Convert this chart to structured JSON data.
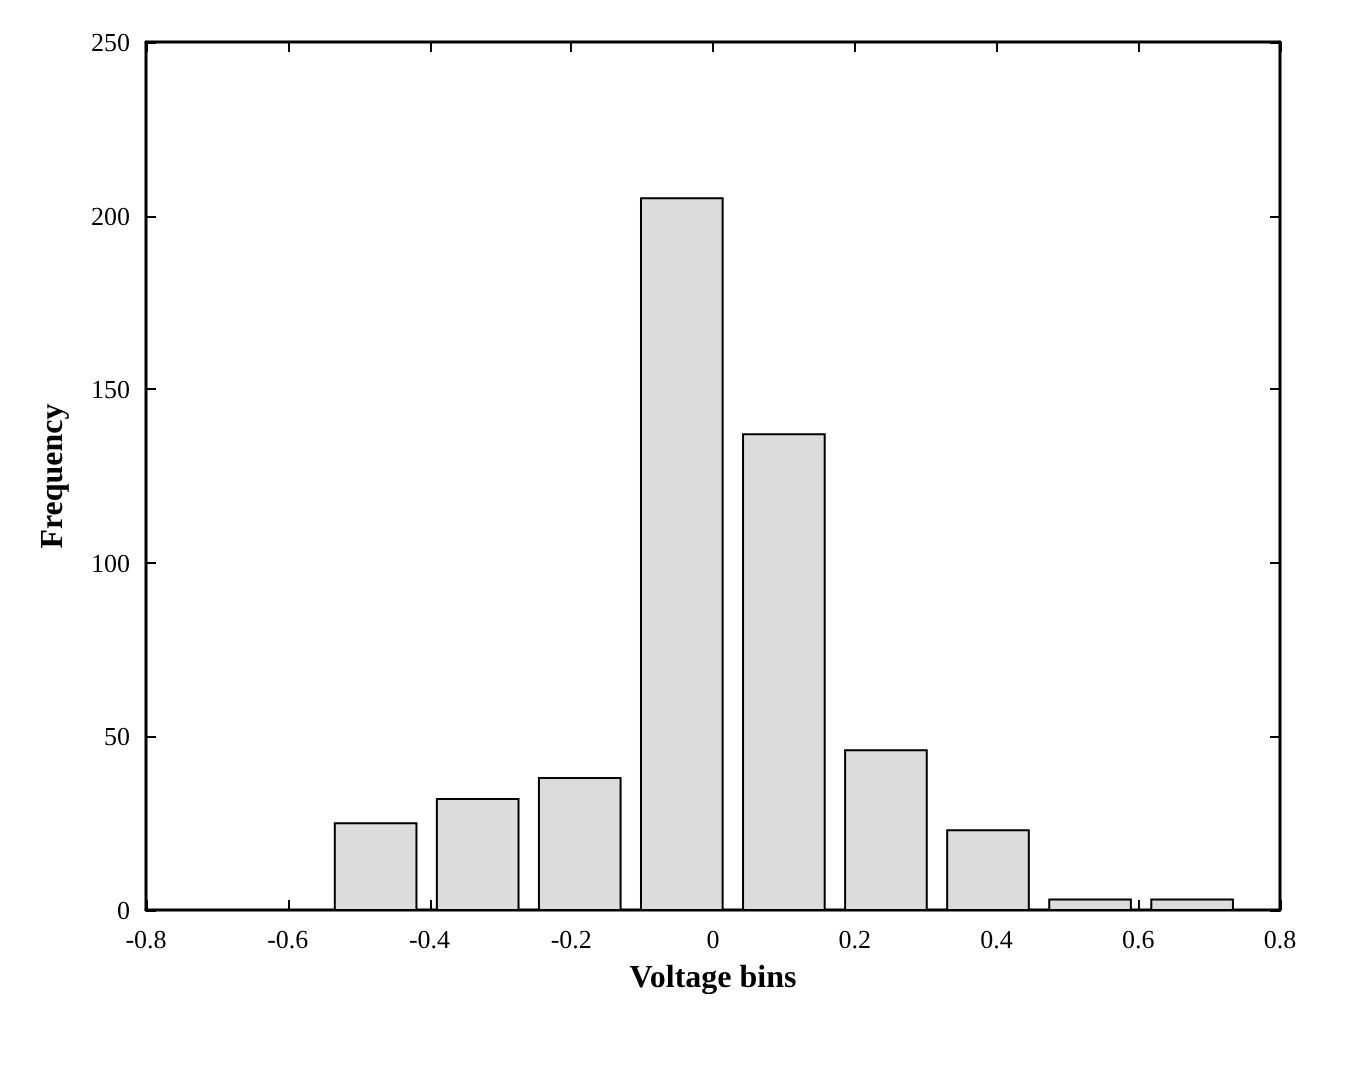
{
  "chart_data": {
    "type": "histogram",
    "xlabel": "Voltage bins",
    "ylabel": "Frequency",
    "bins": [
      -0.548,
      -0.404,
      -0.26,
      -0.116,
      0.028,
      0.172,
      0.316,
      0.46,
      0.604,
      0.748
    ],
    "values": [
      25,
      32,
      38,
      205,
      137,
      46,
      23,
      3,
      3
    ],
    "color": "#dcdcdc",
    "xlim": [
      -0.8,
      0.8
    ],
    "xticks": [
      -0.8,
      -0.6,
      -0.4,
      -0.2,
      0,
      0.2,
      0.4,
      0.6,
      0.8
    ],
    "ylim": [
      0,
      250
    ],
    "yticks": [
      0,
      50,
      100,
      150,
      200,
      250
    ],
    "grid": false,
    "legend": false
  }
}
